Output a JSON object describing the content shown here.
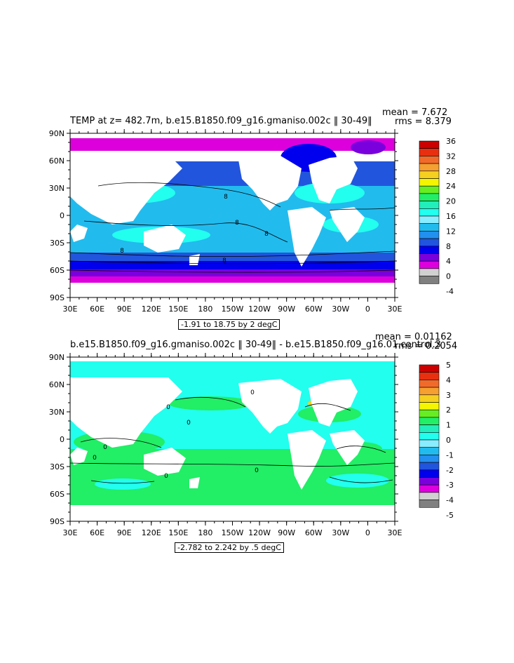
{
  "panels": [
    {
      "title": "TEMP at z= 482.7m, b.e15.B1850.f09_g16.gmaniso.002c ‖ 30-49‖",
      "mean_text": "mean = 7.672",
      "rms_text": "rms = 8.379",
      "range_text": "-1.91 to 18.75 by 2 degC",
      "lat_labels": [
        "90N",
        "60N",
        "30N",
        "0",
        "30S",
        "60S",
        "90S"
      ],
      "lon_labels": [
        "30E",
        "60E",
        "90E",
        "120E",
        "150E",
        "180",
        "150W",
        "120W",
        "90W",
        "60W",
        "30W",
        "0",
        "30E"
      ],
      "colorbar_labels": [
        "36",
        "32",
        "28",
        "24",
        "20",
        "16",
        "12",
        "8",
        "4",
        "0",
        "-4"
      ],
      "contour_labels": [
        "8",
        "8",
        "8",
        "8",
        "8"
      ],
      "colorbar_colors": [
        "#cc0000",
        "#e83010",
        "#f26a2a",
        "#f5a030",
        "#f5d020",
        "#f5f500",
        "#66ee22",
        "#22ee66",
        "#22eebb",
        "#22ffee",
        "#88eeff",
        "#22bbee",
        "#2290ee",
        "#2255dd",
        "#0000ee",
        "#7a00dd",
        "#dd00dd",
        "#d0d0d0",
        "#808080"
      ]
    },
    {
      "title": "b.e15.B1850.f09_g16.gmaniso.002c ‖ 30-49‖ - b.e15.B1850.f09_g16.01.control.3",
      "mean_text": "mean = 0.01162",
      "rms_text": "rms = 0.2054",
      "range_text": "-2.782 to 2.242 by .5 degC",
      "lat_labels": [
        "90N",
        "60N",
        "30N",
        "0",
        "30S",
        "60S",
        "90S"
      ],
      "lon_labels": [
        "30E",
        "60E",
        "90E",
        "120E",
        "150E",
        "180",
        "150W",
        "120W",
        "90W",
        "60W",
        "30W",
        "0",
        "30E"
      ],
      "colorbar_labels": [
        "5",
        "4",
        "3",
        "2",
        "1",
        "0",
        "-1",
        "-2",
        "-3",
        "-4",
        "-5"
      ],
      "contour_labels": [
        "0",
        "0",
        "0",
        "0",
        "0",
        "0",
        "0"
      ],
      "colorbar_colors": [
        "#cc0000",
        "#e83010",
        "#f26a2a",
        "#f5a030",
        "#f5d020",
        "#f5f500",
        "#66ee22",
        "#22ee66",
        "#22eebb",
        "#22ffee",
        "#88eeff",
        "#22bbee",
        "#2290ee",
        "#2255dd",
        "#0000ee",
        "#7a00dd",
        "#dd00dd",
        "#d0d0d0",
        "#808080"
      ]
    }
  ]
}
